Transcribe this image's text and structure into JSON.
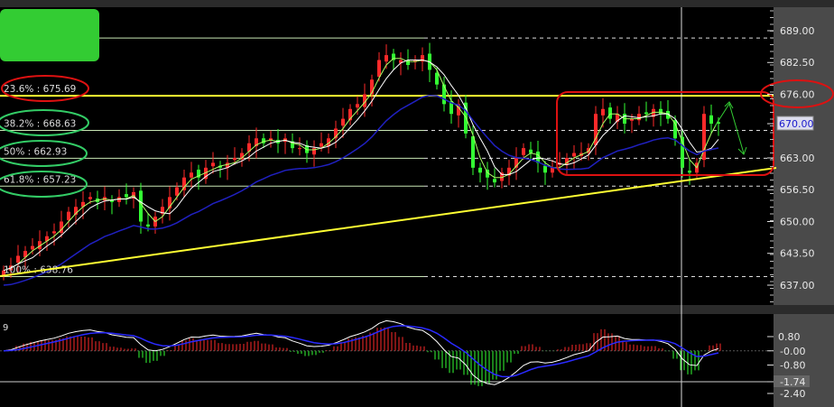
{
  "chart_data": {
    "type": "candlestick",
    "price_axis": {
      "ticks": [
        "689.00",
        "682.50",
        "676.00",
        "670.00",
        "663.00",
        "656.50",
        "650.00",
        "643.50",
        "637.00"
      ],
      "range": [
        634,
        693
      ],
      "current_price_label": "670.00"
    },
    "fib_levels": [
      {
        "label": "23.6% : 675.69",
        "value": 675.69,
        "color": "#ffff33"
      },
      {
        "label": "38.2% : 668.63",
        "value": 668.63,
        "color": "#c8e6b4"
      },
      {
        "label": "50%  : 662.93",
        "value": 662.93,
        "color": "#c8e6b4"
      },
      {
        "label": "61.8% : 657.23",
        "value": 657.23,
        "color": "#c8e6b4"
      },
      {
        "label": "100% : 638.76",
        "value": 638.76,
        "color": "#c8e6b4"
      }
    ],
    "top_level": 687.5,
    "closes": [
      640,
      641,
      643,
      644,
      645,
      646,
      647,
      648,
      650,
      652,
      653,
      654,
      655,
      654,
      655,
      654,
      655,
      655,
      656,
      650,
      649,
      651,
      653,
      655,
      657,
      659,
      660,
      659,
      661,
      662,
      661,
      662,
      663,
      664,
      666,
      667,
      666,
      667,
      666,
      667,
      665,
      665,
      664,
      665,
      666,
      667,
      669,
      671,
      673,
      674,
      676,
      679,
      683,
      684,
      683,
      683,
      682,
      683,
      684,
      681,
      678,
      674,
      672,
      674,
      668,
      661,
      660,
      659,
      658,
      660,
      661,
      663,
      665,
      664,
      662,
      660,
      661,
      662,
      663,
      664,
      664,
      665,
      672,
      673,
      671,
      672,
      670,
      671,
      672,
      672,
      673,
      672,
      671,
      667,
      661,
      660,
      662,
      672,
      670,
      670
    ],
    "indicator": {
      "label": "9",
      "ticks": [
        "0.80",
        "-0.00",
        "-0.80",
        "-1.74",
        "-2.40"
      ],
      "range": [
        -2.8,
        1.6
      ],
      "current_value_label": "-1.74"
    },
    "colors": {
      "up": "#ff2a2a",
      "down": "#33ff33",
      "ma_fast": "#aaff66",
      "ma_slow": "#ffffff",
      "ma_long": "#2020c0",
      "fib_key": "#ffff00",
      "trendline": "#ffff33",
      "annotation": "#dd1111"
    }
  }
}
